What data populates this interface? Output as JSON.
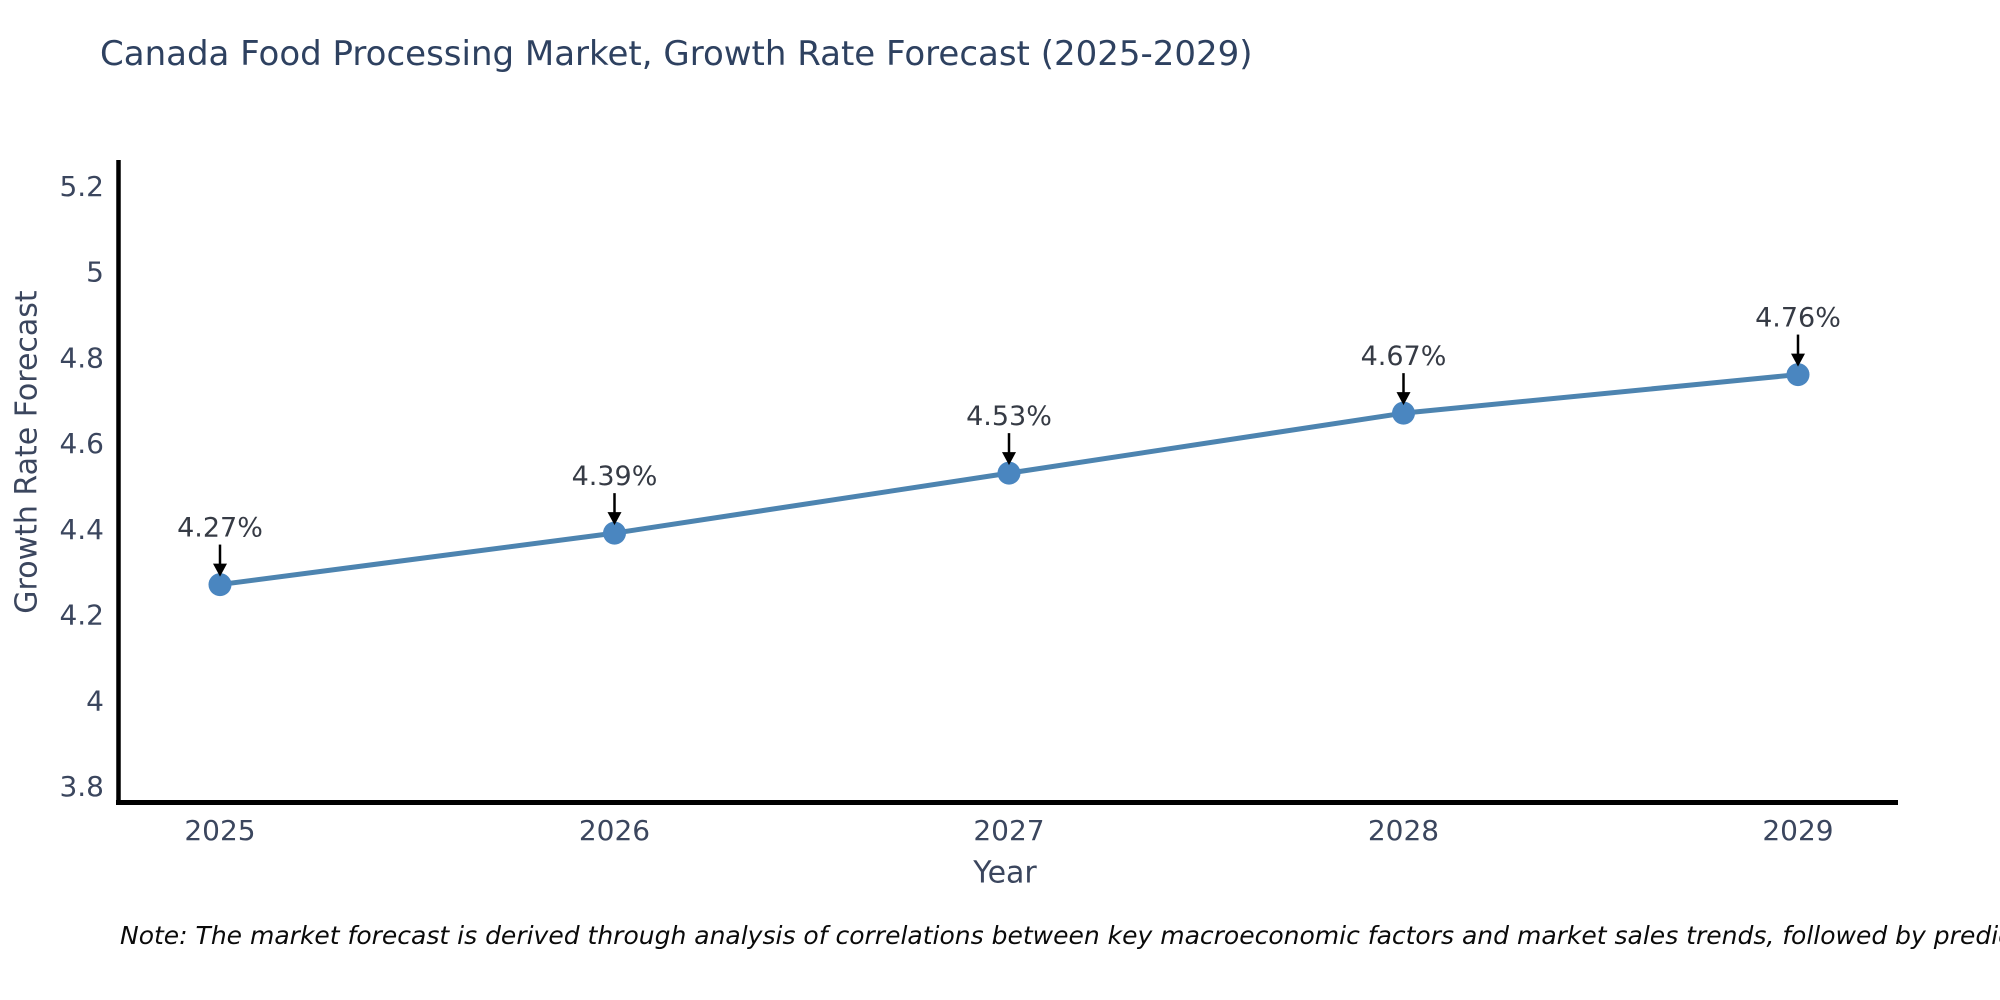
{
  "chart_data": {
    "type": "line",
    "title": "Canada Food Processing Market, Growth Rate Forecast (2025-2029)",
    "xlabel": "Year",
    "ylabel": "Growth Rate Forecast",
    "categories": [
      "2025",
      "2026",
      "2027",
      "2028",
      "2029"
    ],
    "series": [
      {
        "name": "Growth Rate Forecast",
        "values": [
          4.27,
          4.39,
          4.53,
          4.67,
          4.76
        ],
        "point_labels": [
          "4.27%",
          "4.39%",
          "4.53%",
          "4.67%",
          "4.76%"
        ]
      }
    ],
    "ylim": [
      3.76,
      5.27
    ],
    "yticks": [
      3.8,
      4.0,
      4.2,
      4.4,
      4.6,
      4.8,
      5.0,
      5.2
    ],
    "ytick_labels": [
      "3.8",
      "4",
      "4.2",
      "4.4",
      "4.6",
      "4.8",
      "5",
      "5.2"
    ],
    "grid": false,
    "legend": false,
    "colors": {
      "line": "#4d84b0",
      "marker": "#4a86c0",
      "axis": "#000000",
      "arrow": "#000000",
      "title_text": "#2e4160",
      "tick_text": "#3b465e",
      "annotation_text": "#363b45"
    }
  },
  "note": "Note: The market forecast is derived through analysis of correlations between key macroeconomic factors and market sales trends, followed by predictive modeling to project future sales."
}
